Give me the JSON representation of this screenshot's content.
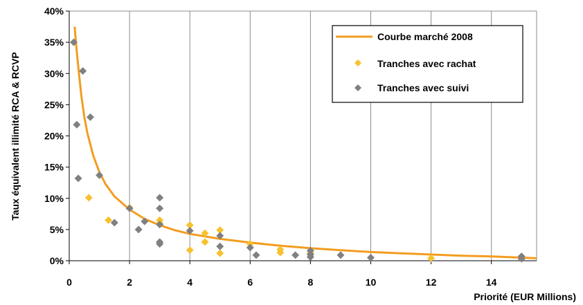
{
  "chart_data": {
    "type": "scatter",
    "xlabel": "Priorité (EUR Millions)",
    "ylabel": "Taux équivalent illimité RCA & RCVP",
    "xlim": [
      0,
      15.5
    ],
    "ylim": [
      0,
      0.4
    ],
    "x_ticks": [
      0,
      2,
      4,
      6,
      8,
      10,
      12,
      14
    ],
    "x_tick_labels": [
      "0",
      "2",
      "4",
      "6",
      "8",
      "10",
      "12",
      "14"
    ],
    "y_ticks": [
      0,
      0.05,
      0.1,
      0.15,
      0.2,
      0.25,
      0.3,
      0.35,
      0.4
    ],
    "y_tick_labels": [
      "0%",
      "5%",
      "10%",
      "15%",
      "20%",
      "25%",
      "30%",
      "35%",
      "40%"
    ],
    "grid": "vertical",
    "legend_position": "top-right",
    "colors": {
      "curve": "#f39c1f",
      "rachat": "#f7c230",
      "suivi": "#808080"
    },
    "series": [
      {
        "name": "Courbe marché 2008",
        "type": "line",
        "x": [
          0.18,
          0.25,
          0.3,
          0.4,
          0.5,
          0.6,
          0.8,
          1.0,
          1.2,
          1.5,
          2.0,
          2.5,
          3.0,
          3.5,
          4.0,
          5.0,
          6.0,
          7.0,
          8.0,
          9.0,
          10.0,
          11.0,
          12.0,
          13.0,
          14.0,
          15.0,
          15.5
        ],
        "y": [
          0.375,
          0.335,
          0.31,
          0.265,
          0.23,
          0.205,
          0.168,
          0.142,
          0.123,
          0.103,
          0.082,
          0.067,
          0.057,
          0.049,
          0.043,
          0.035,
          0.029,
          0.024,
          0.02,
          0.017,
          0.014,
          0.012,
          0.01,
          0.008,
          0.007,
          0.005,
          0.004
        ]
      },
      {
        "name": "Tranches avec rachat",
        "type": "scatter",
        "x": [
          0.65,
          1.3,
          2.0,
          3.0,
          3.0,
          4.0,
          4.0,
          4.5,
          4.5,
          5.0,
          5.0,
          6.0,
          7.0,
          7.0,
          8.0,
          12.0
        ],
        "y": [
          0.101,
          0.065,
          0.085,
          0.065,
          0.06,
          0.057,
          0.017,
          0.044,
          0.03,
          0.049,
          0.012,
          0.027,
          0.018,
          0.013,
          0.012,
          0.004
        ]
      },
      {
        "name": "Tranches avec suivi",
        "type": "scatter",
        "x": [
          0.15,
          0.25,
          0.3,
          0.45,
          0.7,
          1.0,
          1.5,
          2.0,
          2.3,
          2.5,
          3.0,
          3.0,
          3.0,
          3.0,
          3.0,
          4.0,
          5.0,
          5.0,
          6.0,
          6.2,
          7.5,
          8.0,
          8.0,
          8.0,
          9.0,
          10.0,
          15.0,
          15.0
        ],
        "y": [
          0.35,
          0.218,
          0.132,
          0.304,
          0.23,
          0.137,
          0.061,
          0.084,
          0.05,
          0.063,
          0.101,
          0.084,
          0.058,
          0.03,
          0.027,
          0.048,
          0.04,
          0.023,
          0.021,
          0.009,
          0.009,
          0.016,
          0.01,
          0.006,
          0.009,
          0.005,
          0.007,
          0.003
        ]
      }
    ]
  }
}
